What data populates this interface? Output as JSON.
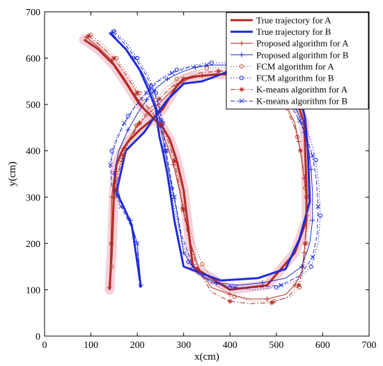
{
  "chart_data": {
    "type": "line",
    "title": "",
    "xlabel": "x(cm)",
    "ylabel": "y(cm)",
    "xlim": [
      0,
      700
    ],
    "ylim": [
      0,
      700
    ],
    "xticks": [
      "0",
      "100",
      "200",
      "300",
      "400",
      "500",
      "600",
      "700"
    ],
    "yticks": [
      "0",
      "100",
      "200",
      "300",
      "400",
      "500",
      "600",
      "700"
    ],
    "legend_position": "top-right",
    "series": [
      {
        "name": "True trajectory for A",
        "color": "#b22a22",
        "dash": "solid",
        "width": 3,
        "marker": "none",
        "x": [
          85,
          115,
          150,
          180,
          205,
          225,
          255,
          270,
          285,
          300,
          320,
          400,
          480,
          540,
          565,
          565,
          560,
          540,
          500,
          400,
          370,
          320,
          300,
          285,
          270,
          255,
          235,
          205,
          180,
          165,
          155,
          150,
          145,
          140
        ],
        "y": [
          640,
          620,
          585,
          540,
          500,
          480,
          450,
          425,
          380,
          315,
          150,
          100,
          110,
          180,
          250,
          320,
          460,
          520,
          560,
          565,
          565,
          560,
          555,
          540,
          515,
          490,
          470,
          445,
          420,
          395,
          370,
          320,
          180,
          100
        ]
      },
      {
        "name": "True trajectory for B",
        "color": "#1f2bd6",
        "dash": "solid",
        "width": 3,
        "marker": "none",
        "x": [
          140,
          175,
          205,
          225,
          240,
          245,
          248,
          255,
          265,
          280,
          300,
          380,
          460,
          520,
          550,
          572,
          568,
          562,
          550,
          520,
          470,
          420,
          380,
          340,
          300,
          265,
          235,
          215,
          175,
          155,
          170,
          188,
          208
        ],
        "y": [
          655,
          620,
          575,
          530,
          490,
          450,
          430,
          400,
          350,
          250,
          150,
          120,
          125,
          145,
          210,
          290,
          400,
          470,
          520,
          575,
          585,
          580,
          565,
          550,
          545,
          510,
          470,
          440,
          400,
          310,
          280,
          240,
          105
        ]
      },
      {
        "name": "Proposed algorithm for A",
        "color": "#b22a22",
        "dash": "solid",
        "width": 1,
        "marker": "plus",
        "x": [
          90,
          115,
          145,
          170,
          195,
          220,
          248,
          265,
          278,
          290,
          300,
          315,
          335,
          360,
          400,
          440,
          480,
          520,
          540,
          555,
          560,
          563,
          566,
          564,
          560,
          555,
          548,
          540,
          520,
          495,
          465,
          430,
          400,
          370,
          340,
          310,
          285,
          265,
          245,
          225,
          200,
          185,
          170,
          160,
          152,
          148,
          145,
          143,
          140
        ],
        "y": [
          645,
          625,
          595,
          560,
          520,
          485,
          455,
          410,
          370,
          320,
          270,
          200,
          140,
          105,
          90,
          80,
          80,
          90,
          110,
          140,
          180,
          220,
          260,
          300,
          340,
          380,
          420,
          460,
          500,
          535,
          555,
          563,
          565,
          565,
          562,
          555,
          540,
          520,
          500,
          480,
          455,
          430,
          405,
          380,
          355,
          330,
          300,
          200,
          105
        ]
      },
      {
        "name": "Proposed algorithm for B",
        "color": "#1f2bd6",
        "dash": "solid",
        "width": 1,
        "marker": "plus",
        "x": [
          145,
          165,
          190,
          210,
          228,
          240,
          248,
          252,
          258,
          265,
          275,
          285,
          300,
          330,
          370,
          420,
          470,
          520,
          555,
          572,
          578,
          578,
          575,
          570,
          560,
          548,
          530,
          500,
          470,
          430,
          395,
          360,
          325,
          295,
          265,
          240,
          220,
          200,
          180,
          160,
          150,
          165,
          185,
          200,
          208
        ],
        "y": [
          655,
          630,
          600,
          570,
          535,
          500,
          470,
          440,
          410,
          370,
          320,
          270,
          180,
          135,
          115,
          110,
          115,
          125,
          150,
          200,
          250,
          310,
          360,
          400,
          440,
          480,
          510,
          540,
          560,
          575,
          585,
          585,
          580,
          570,
          555,
          535,
          510,
          480,
          445,
          400,
          350,
          290,
          250,
          200,
          110
        ]
      },
      {
        "name": "FCM algorithm for A",
        "color": "#b55a3c",
        "dash": "dot",
        "width": 1,
        "marker": "circle",
        "x": [
          100,
          125,
          155,
          180,
          205,
          228,
          255,
          270,
          282,
          292,
          300,
          318,
          340,
          370,
          410,
          450,
          495,
          530,
          550,
          560,
          565,
          566,
          562,
          555,
          545,
          530,
          505,
          470,
          430,
          390,
          350,
          315,
          285,
          262,
          240,
          218,
          198,
          180,
          165,
          155,
          150,
          147,
          145,
          143
        ],
        "y": [
          650,
          630,
          600,
          565,
          525,
          490,
          460,
          420,
          380,
          330,
          280,
          215,
          155,
          110,
          85,
          75,
          75,
          85,
          105,
          150,
          200,
          260,
          320,
          380,
          430,
          480,
          525,
          560,
          575,
          580,
          578,
          570,
          555,
          535,
          510,
          485,
          455,
          420,
          380,
          340,
          300,
          250,
          150,
          105
        ]
      },
      {
        "name": "FCM algorithm for B",
        "color": "#1f2bd6",
        "dash": "dot",
        "width": 1,
        "marker": "circle",
        "x": [
          150,
          175,
          200,
          222,
          240,
          250,
          255,
          258,
          262,
          268,
          275,
          290,
          310,
          350,
          400,
          450,
          500,
          545,
          575,
          590,
          595,
          592,
          585,
          575,
          560,
          540,
          515,
          480,
          440,
          400,
          360,
          320,
          285,
          255,
          230,
          205,
          180,
          158,
          145,
          140
        ],
        "y": [
          658,
          635,
          600,
          565,
          525,
          490,
          460,
          430,
          400,
          360,
          300,
          230,
          160,
          120,
          105,
          100,
          105,
          120,
          150,
          200,
          260,
          320,
          380,
          420,
          460,
          495,
          530,
          560,
          580,
          590,
          590,
          585,
          575,
          560,
          540,
          510,
          475,
          435,
          400,
          360
        ]
      },
      {
        "name": "K-means algorithm for A",
        "color": "#b22a22",
        "dash": "dashdot",
        "width": 1,
        "marker": "star",
        "x": [
          95,
          120,
          150,
          175,
          200,
          225,
          252,
          268,
          280,
          290,
          298,
          312,
          330,
          360,
          400,
          445,
          490,
          525,
          548,
          558,
          562,
          566,
          565,
          560,
          552,
          540,
          520,
          490,
          455,
          415,
          375,
          335,
          300,
          270,
          248,
          225,
          205,
          185,
          170,
          160,
          153,
          148,
          144,
          142
        ],
        "y": [
          648,
          628,
          600,
          565,
          525,
          490,
          458,
          418,
          378,
          325,
          275,
          205,
          145,
          95,
          75,
          70,
          72,
          85,
          110,
          150,
          200,
          250,
          300,
          350,
          400,
          450,
          495,
          535,
          560,
          570,
          572,
          568,
          555,
          535,
          512,
          488,
          460,
          425,
          390,
          355,
          315,
          270,
          200,
          150
        ]
      },
      {
        "name": "K-means algorithm for B",
        "color": "#1f2bd6",
        "dash": "dashdash",
        "width": 1,
        "marker": "x",
        "x": [
          148,
          172,
          196,
          218,
          236,
          247,
          252,
          256,
          262,
          270,
          280,
          295,
          320,
          360,
          410,
          460,
          510,
          550,
          578,
          588,
          590,
          586,
          578,
          565,
          550,
          530,
          505,
          470,
          430,
          390,
          350,
          310,
          275,
          245,
          220,
          195,
          172,
          152,
          142,
          145,
          165,
          185,
          200,
          205
        ],
        "y": [
          656,
          632,
          600,
          565,
          528,
          495,
          465,
          435,
          400,
          355,
          300,
          220,
          150,
          115,
          105,
          105,
          110,
          130,
          170,
          220,
          280,
          340,
          390,
          430,
          465,
          500,
          535,
          560,
          578,
          585,
          585,
          580,
          568,
          550,
          525,
          495,
          460,
          415,
          370,
          325,
          280,
          240,
          200,
          105
        ]
      }
    ]
  }
}
